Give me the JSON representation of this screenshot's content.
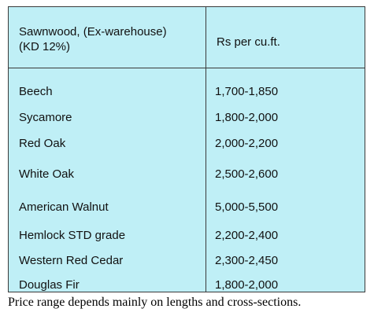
{
  "table": {
    "header": {
      "col1": "Sawnwood, (Ex-warehouse)\n(KD 12%)",
      "col2": "Rs per cu.ft."
    },
    "rows": [
      {
        "species": "Beech",
        "price": "1,700-1,850"
      },
      {
        "species": "Sycamore",
        "price": "1,800-2,000"
      },
      {
        "species": "Red Oak",
        "price": "2,000-2,200"
      },
      {
        "species": "White Oak",
        "price": "2,500-2,600"
      },
      {
        "species": "American Walnut",
        "price": "5,000-5,500"
      },
      {
        "species": "Hemlock STD grade",
        "price": "2,200-2,400"
      },
      {
        "species": "Western Red Cedar",
        "price": "2,300-2,450"
      },
      {
        "species": "Douglas Fir",
        "price": "1,800-2,000"
      }
    ],
    "background_color": "#bfeff6"
  },
  "footnote": "Price range depends mainly on lengths and cross-sections."
}
